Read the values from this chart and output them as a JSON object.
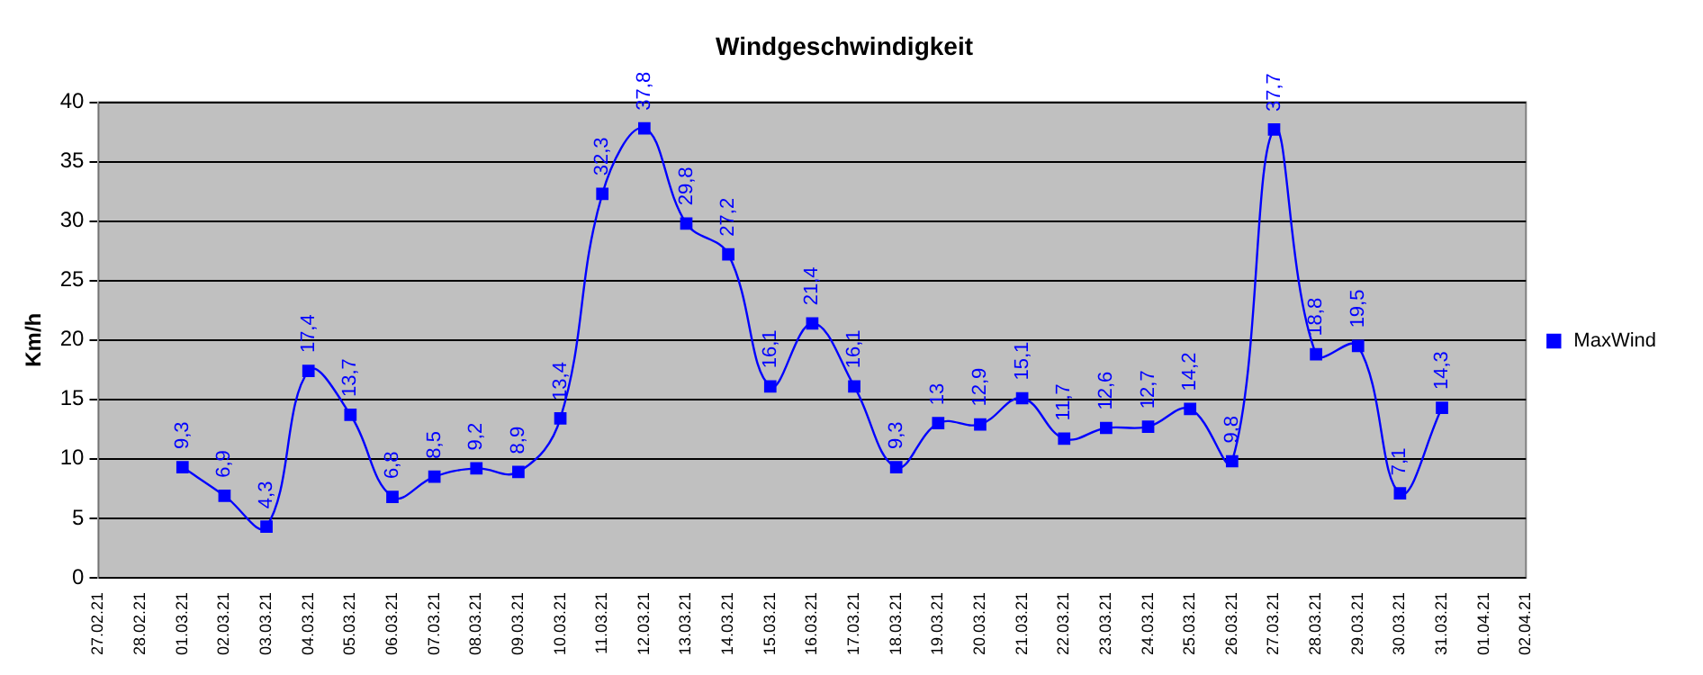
{
  "chart_data": {
    "type": "line",
    "title": "Windgeschwindigkeit",
    "ylabel": "Km/h",
    "categories": [
      "27.02.21",
      "28.02.21",
      "01.03.21",
      "02.03.21",
      "03.03.21",
      "04.03.21",
      "05.03.21",
      "06.03.21",
      "07.03.21",
      "08.03.21",
      "09.03.21",
      "10.03.21",
      "11.03.21",
      "12.03.21",
      "13.03.21",
      "14.03.21",
      "15.03.21",
      "16.03.21",
      "17.03.21",
      "18.03.21",
      "19.03.21",
      "20.03.21",
      "21.03.21",
      "22.03.21",
      "23.03.21",
      "24.03.21",
      "25.03.21",
      "26.03.21",
      "27.03.21",
      "28.03.21",
      "29.03.21",
      "30.03.21",
      "31.03.21",
      "01.04.21",
      "02.04.21"
    ],
    "series": [
      {
        "name": "MaxWind",
        "color": "#0000ff",
        "values": [
          null,
          null,
          9.3,
          6.9,
          4.3,
          17.4,
          13.7,
          6.8,
          8.5,
          9.2,
          8.9,
          13.4,
          32.3,
          37.8,
          29.8,
          27.2,
          16.1,
          21.4,
          16.1,
          9.3,
          13,
          12.9,
          15.1,
          11.7,
          12.6,
          12.7,
          14.2,
          9.8,
          37.7,
          18.8,
          19.5,
          7.1,
          14.3,
          null,
          null
        ],
        "value_labels": [
          null,
          null,
          "9,3",
          "6,9",
          "4,3",
          "17,4",
          "13,7",
          "6,8",
          "8,5",
          "9,2",
          "8,9",
          "13,4",
          "32,3",
          "37,8",
          "29,8",
          "27,2",
          "16,1",
          "21,4",
          "16,1",
          "9,3",
          "13",
          "12,9",
          "15,1",
          "11,7",
          "12,6",
          "12,7",
          "14,2",
          "9,8",
          "37,7",
          "18,8",
          "19,5",
          "7,1",
          "14,3",
          null,
          null
        ]
      }
    ],
    "ylim": [
      0,
      40
    ],
    "yticks": [
      0,
      5,
      10,
      15,
      20,
      25,
      30,
      35,
      40
    ],
    "grid": "y",
    "legend": "right",
    "marker": "square",
    "line_style": "solid"
  }
}
